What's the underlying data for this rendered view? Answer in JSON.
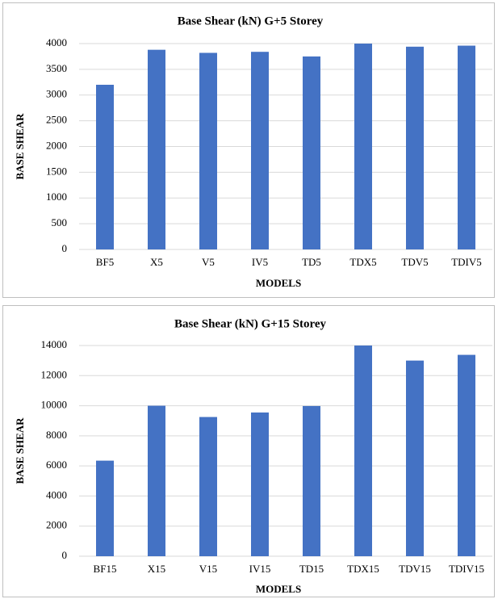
{
  "chart_data": [
    {
      "type": "bar",
      "title": "Base Shear (kN) G+5 Storey",
      "x_label": "MODELS",
      "y_label": "BASE SHEAR",
      "categories": [
        "BF5",
        "X5",
        "V5",
        "IV5",
        "TD5",
        "TDX5",
        "TDV5",
        "TDIV5"
      ],
      "values": [
        3200,
        3880,
        3820,
        3840,
        3750,
        4000,
        3940,
        3960
      ],
      "color": "#4472c4",
      "ylim": [
        0,
        4000
      ],
      "yticks": [
        0,
        500,
        1000,
        1500,
        2000,
        2500,
        3000,
        3500,
        4000
      ],
      "grid": true
    },
    {
      "type": "bar",
      "title": "Base Shear (kN) G+15 Storey",
      "x_label": "MODELS",
      "y_label": "BASE SHEAR",
      "categories": [
        "BF15",
        "X15",
        "V15",
        "IV15",
        "TD15",
        "TDX15",
        "TDV15",
        "TDIV15"
      ],
      "values": [
        6350,
        10000,
        9250,
        9550,
        9980,
        14000,
        13000,
        13380
      ],
      "color": "#4472c4",
      "ylim": [
        0,
        14000
      ],
      "yticks": [
        0,
        2000,
        4000,
        6000,
        8000,
        10000,
        12000,
        14000
      ],
      "grid": true
    }
  ]
}
